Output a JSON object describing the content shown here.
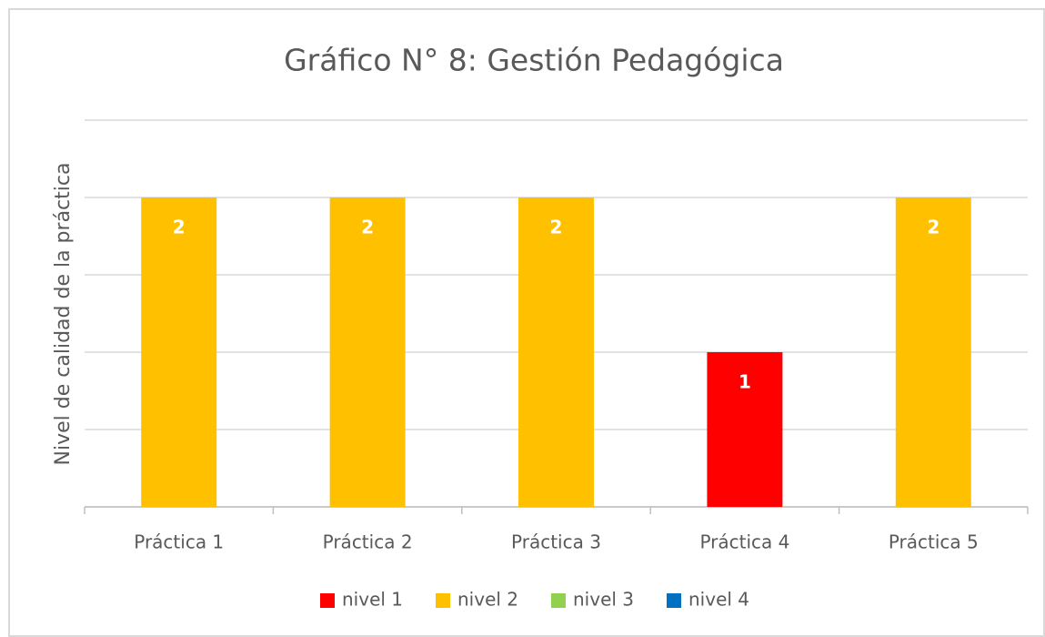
{
  "chart_data": {
    "type": "bar",
    "title": "Gráfico N° 8: Gestión Pedagógica",
    "y_label": "Nivel de calidad de la práctica",
    "categories": [
      "Práctica 1",
      "Práctica 2",
      "Práctica 3",
      "Práctica 4",
      "Práctica 5"
    ],
    "series": [
      {
        "name": "nivel 1",
        "color": "#ff0000",
        "values": [
          null,
          null,
          null,
          1,
          null
        ]
      },
      {
        "name": "nivel 2",
        "color": "#ffc000",
        "values": [
          2,
          2,
          2,
          null,
          2
        ]
      },
      {
        "name": "nivel 3",
        "color": "#92d050",
        "values": [
          null,
          null,
          null,
          null,
          null
        ]
      },
      {
        "name": "nivel 4",
        "color": "#0070c0",
        "values": [
          null,
          null,
          null,
          null,
          null
        ]
      }
    ],
    "ylim": [
      0,
      2.5
    ],
    "yticks": [
      0,
      0.5,
      1,
      1.5,
      2,
      2.5
    ],
    "grid": true,
    "legend": "bottom"
  }
}
